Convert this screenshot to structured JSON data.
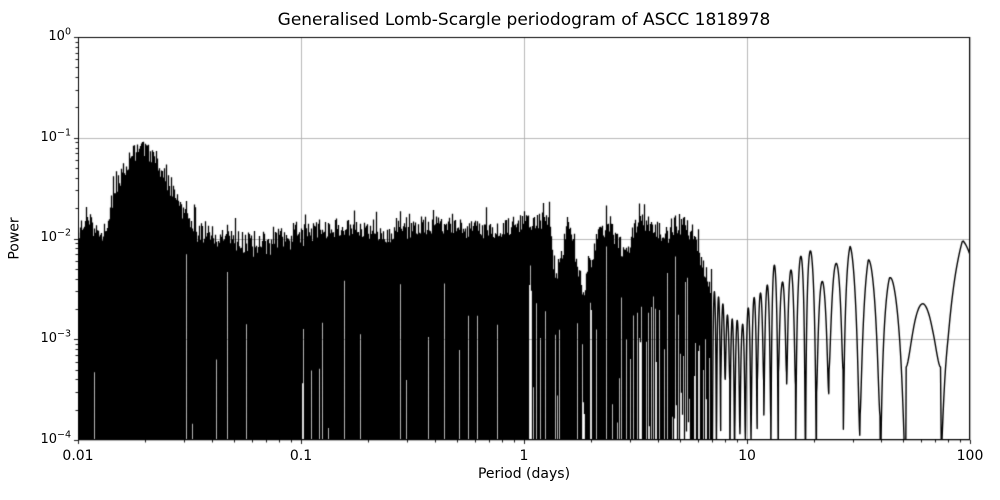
{
  "chart_data": {
    "type": "line",
    "title": "Generalised Lomb-Scargle periodogram of ASCC 1818978",
    "xlabel": "Period (days)",
    "ylabel": "Power",
    "xscale": "log",
    "yscale": "log",
    "xlim": [
      0.01,
      100
    ],
    "ylim": [
      0.0001,
      1
    ],
    "grid": true,
    "legend": false,
    "line_color": "#000000",
    "grid_color": "#b0b0b0",
    "background_color": "#ffffff",
    "x_ticks": [
      {
        "value": 0.01,
        "label": "0.01"
      },
      {
        "value": 0.1,
        "label": "0.1"
      },
      {
        "value": 1,
        "label": "1"
      },
      {
        "value": 10,
        "label": "10"
      },
      {
        "value": 100,
        "label": "100"
      }
    ],
    "y_ticks": [
      {
        "value": 1,
        "base": "10",
        "exp": "0"
      },
      {
        "value": 0.1,
        "base": "10",
        "exp": "−1"
      },
      {
        "value": 0.01,
        "base": "10",
        "exp": "−2"
      },
      {
        "value": 0.001,
        "base": "10",
        "exp": "−3"
      },
      {
        "value": 0.0001,
        "base": "10",
        "exp": "−4"
      }
    ],
    "main_peak": {
      "period_days": 0.02,
      "power": 0.078
    },
    "summary": "Dense black GLS power curve: broad peak reaching ~0.078 at period ~0.02 d, an unresolved noisy band with upper envelope ~0.008-0.016 from 0.03 to ~6 d (with deep notches near 1.4, 1.9 and 2.9 d), a low gap near 8-10 d, then resolved sidelobe oscillations out to 100 d with maxima ~0.001-0.01 and deep nulls below 1e-4.",
    "upper_envelope": [
      [
        0.01,
        0.01
      ],
      [
        0.011,
        0.018
      ],
      [
        0.0125,
        0.0095
      ],
      [
        0.0135,
        0.014
      ],
      [
        0.0145,
        0.028
      ],
      [
        0.016,
        0.048
      ],
      [
        0.018,
        0.072
      ],
      [
        0.02,
        0.078
      ],
      [
        0.022,
        0.062
      ],
      [
        0.024,
        0.046
      ],
      [
        0.027,
        0.027
      ],
      [
        0.03,
        0.017
      ],
      [
        0.035,
        0.0115
      ],
      [
        0.05,
        0.0095
      ],
      [
        0.07,
        0.0085
      ],
      [
        0.1,
        0.011
      ],
      [
        0.15,
        0.013
      ],
      [
        0.25,
        0.011
      ],
      [
        0.4,
        0.014
      ],
      [
        0.6,
        0.012
      ],
      [
        0.8,
        0.0125
      ],
      [
        0.95,
        0.014
      ],
      [
        1.15,
        0.0145
      ],
      [
        1.3,
        0.015
      ],
      [
        1.38,
        0.004
      ],
      [
        1.6,
        0.0145
      ],
      [
        1.85,
        0.0028
      ],
      [
        2.15,
        0.012
      ],
      [
        2.45,
        0.012
      ],
      [
        2.9,
        0.0065
      ],
      [
        3.25,
        0.0155
      ],
      [
        3.8,
        0.013
      ],
      [
        4.5,
        0.0105
      ],
      [
        5.3,
        0.014
      ],
      [
        6.2,
        0.0065
      ],
      [
        7.0,
        0.003
      ],
      [
        8.0,
        0.0018
      ],
      [
        9.5,
        0.001
      ],
      [
        10.5,
        0.002
      ],
      [
        11.5,
        0.0028
      ],
      [
        13.0,
        0.0048
      ],
      [
        14.3,
        0.0035
      ],
      [
        15.3,
        0.005
      ],
      [
        17.0,
        0.0055
      ],
      [
        18.0,
        0.01
      ],
      [
        19.6,
        0.006
      ],
      [
        21.0,
        0.0046
      ],
      [
        23.4,
        0.0035
      ],
      [
        27.0,
        0.0069
      ],
      [
        29.0,
        0.0069
      ],
      [
        31.7,
        0.0026
      ],
      [
        35.0,
        0.0056
      ],
      [
        38.7,
        0.0034
      ],
      [
        43.5,
        0.0038
      ],
      [
        50.0,
        0.0017
      ],
      [
        55.0,
        0.0018
      ],
      [
        62.0,
        0.0022
      ],
      [
        68.0,
        0.0025
      ],
      [
        73.5,
        0.0032
      ],
      [
        80.0,
        0.003
      ],
      [
        92.6,
        0.0077
      ],
      [
        100.0,
        0.006
      ]
    ],
    "render_model": {
      "dense_resolved_break_period_days": 7,
      "window_timespan_days": 170,
      "lobe_phase_offset": 0.3,
      "seed": 20,
      "top_jitter_dex": 0.18,
      "deep_null_floor_range_log10": [
        -4.5,
        -3.25
      ]
    }
  }
}
